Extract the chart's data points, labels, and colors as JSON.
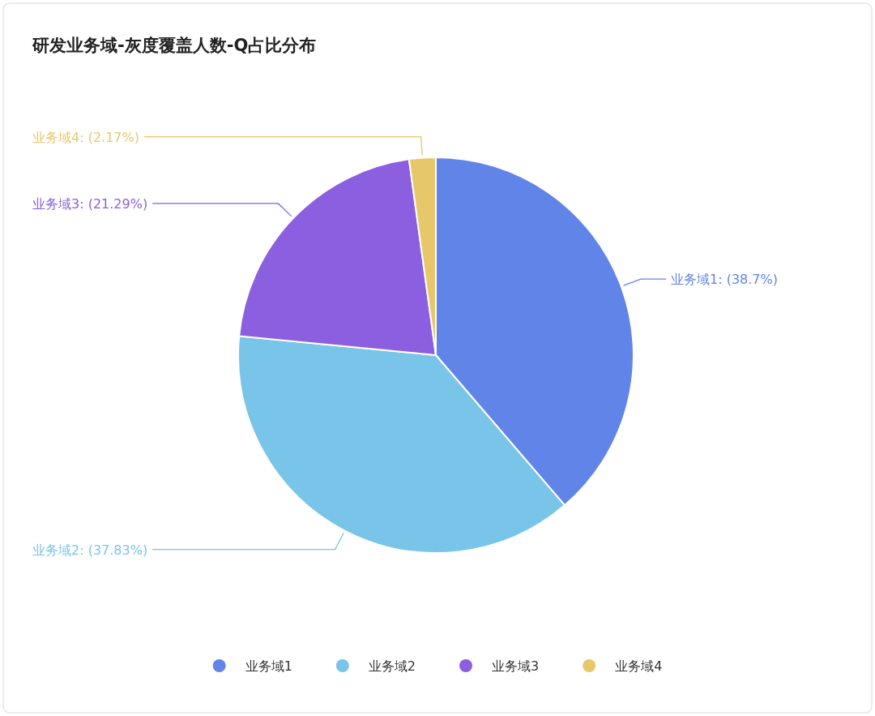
{
  "chart_data": {
    "type": "pie",
    "title": "研发业务域-灰度覆盖人数-Q占比分布",
    "categories": [
      "业务域1",
      "业务域2",
      "业务域3",
      "业务域4"
    ],
    "values": [
      38.7,
      37.83,
      21.29,
      2.17
    ],
    "colors": [
      "#6184e8",
      "#79c4e9",
      "#8b5fe0",
      "#e6c86a"
    ],
    "value_labels": [
      ": (38.7%)",
      ": (37.83%)",
      ": (21.29%)",
      ": (2.17%)"
    ],
    "legend": "bottom"
  }
}
